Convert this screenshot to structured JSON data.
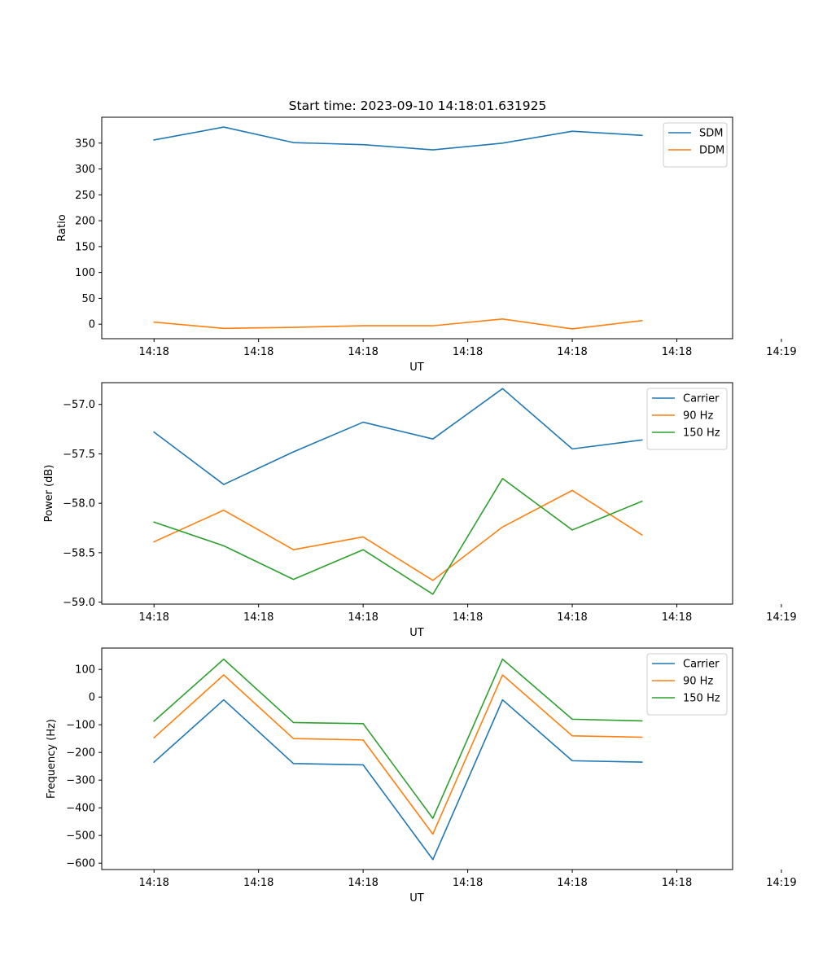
{
  "title": "Start time: 2023-09-10 14:18:01.631925",
  "colors": {
    "blue": "#1f77b4",
    "orange": "#ff7f0e",
    "green": "#2ca02c"
  },
  "chart_data": [
    {
      "type": "line",
      "title": "Start time: 2023-09-10 14:18:01.631925",
      "xlabel": "UT",
      "ylabel": "Ratio",
      "xlim": [
        -0.75,
        8.3
      ],
      "ylim": [
        -28,
        400
      ],
      "x_tick_positions": [
        0,
        1.5,
        3,
        4.5,
        6,
        7.5,
        9
      ],
      "x_tick_labels": [
        "14:18",
        "14:18",
        "14:18",
        "14:18",
        "14:18",
        "14:18",
        "14:19"
      ],
      "y_ticks": [
        0,
        50,
        100,
        150,
        200,
        250,
        300,
        350
      ],
      "y_tick_labels": [
        "0",
        "50",
        "100",
        "150",
        "200",
        "250",
        "300",
        "350"
      ],
      "legend_position": "top-right",
      "x": [
        0,
        1,
        2,
        3,
        4,
        5,
        6,
        7
      ],
      "series": [
        {
          "name": "SDM",
          "color": "blue",
          "values": [
            356,
            381,
            351,
            347,
            337,
            350,
            373,
            365
          ]
        },
        {
          "name": "DDM",
          "color": "orange",
          "values": [
            4,
            -8,
            -6,
            -3,
            -3,
            10,
            -9,
            7
          ]
        }
      ]
    },
    {
      "type": "line",
      "title": "",
      "xlabel": "UT",
      "ylabel": "Power (dB)",
      "xlim": [
        -0.75,
        8.3
      ],
      "ylim": [
        -59.02,
        -56.78
      ],
      "x_tick_positions": [
        0,
        1.5,
        3,
        4.5,
        6,
        7.5,
        9
      ],
      "x_tick_labels": [
        "14:18",
        "14:18",
        "14:18",
        "14:18",
        "14:18",
        "14:18",
        "14:19"
      ],
      "y_ticks": [
        -59.0,
        -58.5,
        -58.0,
        -57.5,
        -57.0
      ],
      "y_tick_labels": [
        "−59.0",
        "−58.5",
        "−58.0",
        "−57.5",
        "−57.0"
      ],
      "legend_position": "top-right",
      "x": [
        0,
        1,
        2,
        3,
        4,
        5,
        6,
        7
      ],
      "series": [
        {
          "name": "Carrier",
          "color": "blue",
          "values": [
            -57.28,
            -57.81,
            -57.48,
            -57.18,
            -57.35,
            -56.84,
            -57.45,
            -57.36
          ]
        },
        {
          "name": "90 Hz",
          "color": "orange",
          "values": [
            -58.39,
            -58.07,
            -58.47,
            -58.34,
            -58.78,
            -58.24,
            -57.87,
            -58.32
          ]
        },
        {
          "name": "150 Hz",
          "color": "green",
          "values": [
            -58.19,
            -58.43,
            -58.77,
            -58.47,
            -58.92,
            -57.75,
            -58.27,
            -57.98
          ]
        }
      ]
    },
    {
      "type": "line",
      "title": "",
      "xlabel": "UT",
      "ylabel": "Frequency (Hz)",
      "xlim": [
        -0.75,
        8.3
      ],
      "ylim": [
        -623,
        177
      ],
      "x_tick_positions": [
        0,
        1.5,
        3,
        4.5,
        6,
        7.5,
        9
      ],
      "x_tick_labels": [
        "14:18",
        "14:18",
        "14:18",
        "14:18",
        "14:18",
        "14:18",
        "14:19"
      ],
      "y_ticks": [
        -600,
        -500,
        -400,
        -300,
        -200,
        -100,
        0,
        100
      ],
      "y_tick_labels": [
        "−600",
        "−500",
        "−400",
        "−300",
        "−200",
        "−100",
        "0",
        "100"
      ],
      "legend_position": "top-right",
      "x": [
        0,
        1,
        2,
        3,
        4,
        5,
        6,
        7
      ],
      "series": [
        {
          "name": "Carrier",
          "color": "blue",
          "values": [
            -235,
            -10,
            -240,
            -245,
            -587,
            -10,
            -230,
            -235
          ]
        },
        {
          "name": "90 Hz",
          "color": "orange",
          "values": [
            -147,
            80,
            -150,
            -155,
            -495,
            80,
            -140,
            -145
          ]
        },
        {
          "name": "150 Hz",
          "color": "green",
          "values": [
            -87,
            137,
            -92,
            -96,
            -438,
            137,
            -80,
            -86
          ]
        }
      ]
    }
  ]
}
